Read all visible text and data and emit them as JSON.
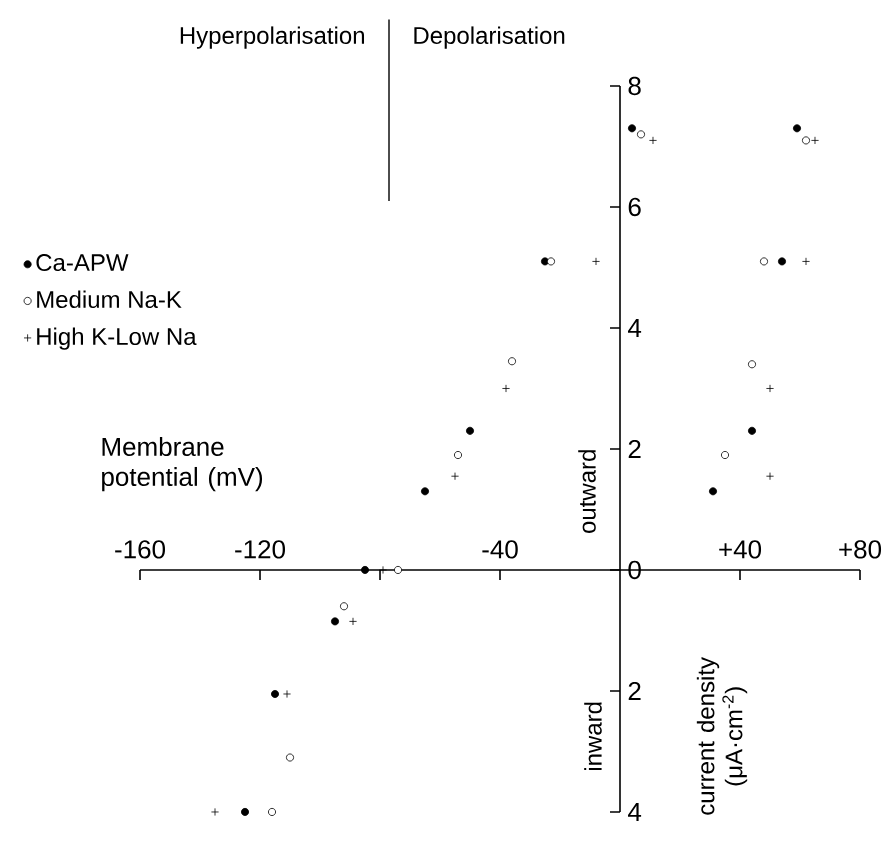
{
  "chart_data": {
    "type": "scatter",
    "xlabel": "Membrane potential (mV)",
    "ylabel": "current density (μA·cm$^{-2}$)",
    "annotations": [
      "Hyperpolarisation",
      "Depolarisation",
      "outward",
      "inward"
    ],
    "series": [
      {
        "name": "Ca-APW",
        "color": "#000000",
        "marker": "circle",
        "x": [
          -125,
          -115,
          -95,
          -85,
          -65,
          -50,
          -25,
          4,
          31,
          44,
          54,
          59
        ],
        "values": [
          -4.0,
          -2.05,
          -0.85,
          0,
          1.3,
          2.3,
          5.1,
          7.3,
          1.3,
          2.3,
          5.1,
          7.3
        ]
      },
      {
        "name": "Medium Na-K",
        "color": "#ffffff",
        "marker": "circle",
        "x": [
          -116,
          -110,
          -92,
          -74,
          -54,
          -36,
          -23,
          7,
          35,
          44,
          48,
          62
        ],
        "values": [
          -4.0,
          -3.1,
          -0.6,
          0,
          1.9,
          3.45,
          5.1,
          7.2,
          1.9,
          3.4,
          5.1,
          7.1
        ]
      },
      {
        "name": "High K-Low Na",
        "color": "#000000",
        "marker": "cross",
        "x": [
          -135,
          -111,
          -89,
          -79,
          -55,
          -38,
          -8,
          11,
          50,
          50,
          62,
          65
        ],
        "values": [
          -4.0,
          -2.05,
          -0.85,
          0,
          1.55,
          3.0,
          5.1,
          7.1,
          1.55,
          3.0,
          5.1,
          7.1
        ]
      }
    ],
    "xlim": [
      -160,
      80
    ],
    "ylim": [
      -4,
      8
    ],
    "xticks": [
      -160,
      -120,
      {
        "value": -80,
        "label": null
      },
      -40,
      {
        "value": 40,
        "label": "+40"
      },
      {
        "value": 80,
        "label": "+80"
      }
    ],
    "yticks": [
      {
        "value": -4,
        "label": "4"
      },
      {
        "value": -2,
        "label": "2"
      },
      0,
      2,
      4,
      6,
      8
    ],
    "legend": "left",
    "grid": false
  }
}
